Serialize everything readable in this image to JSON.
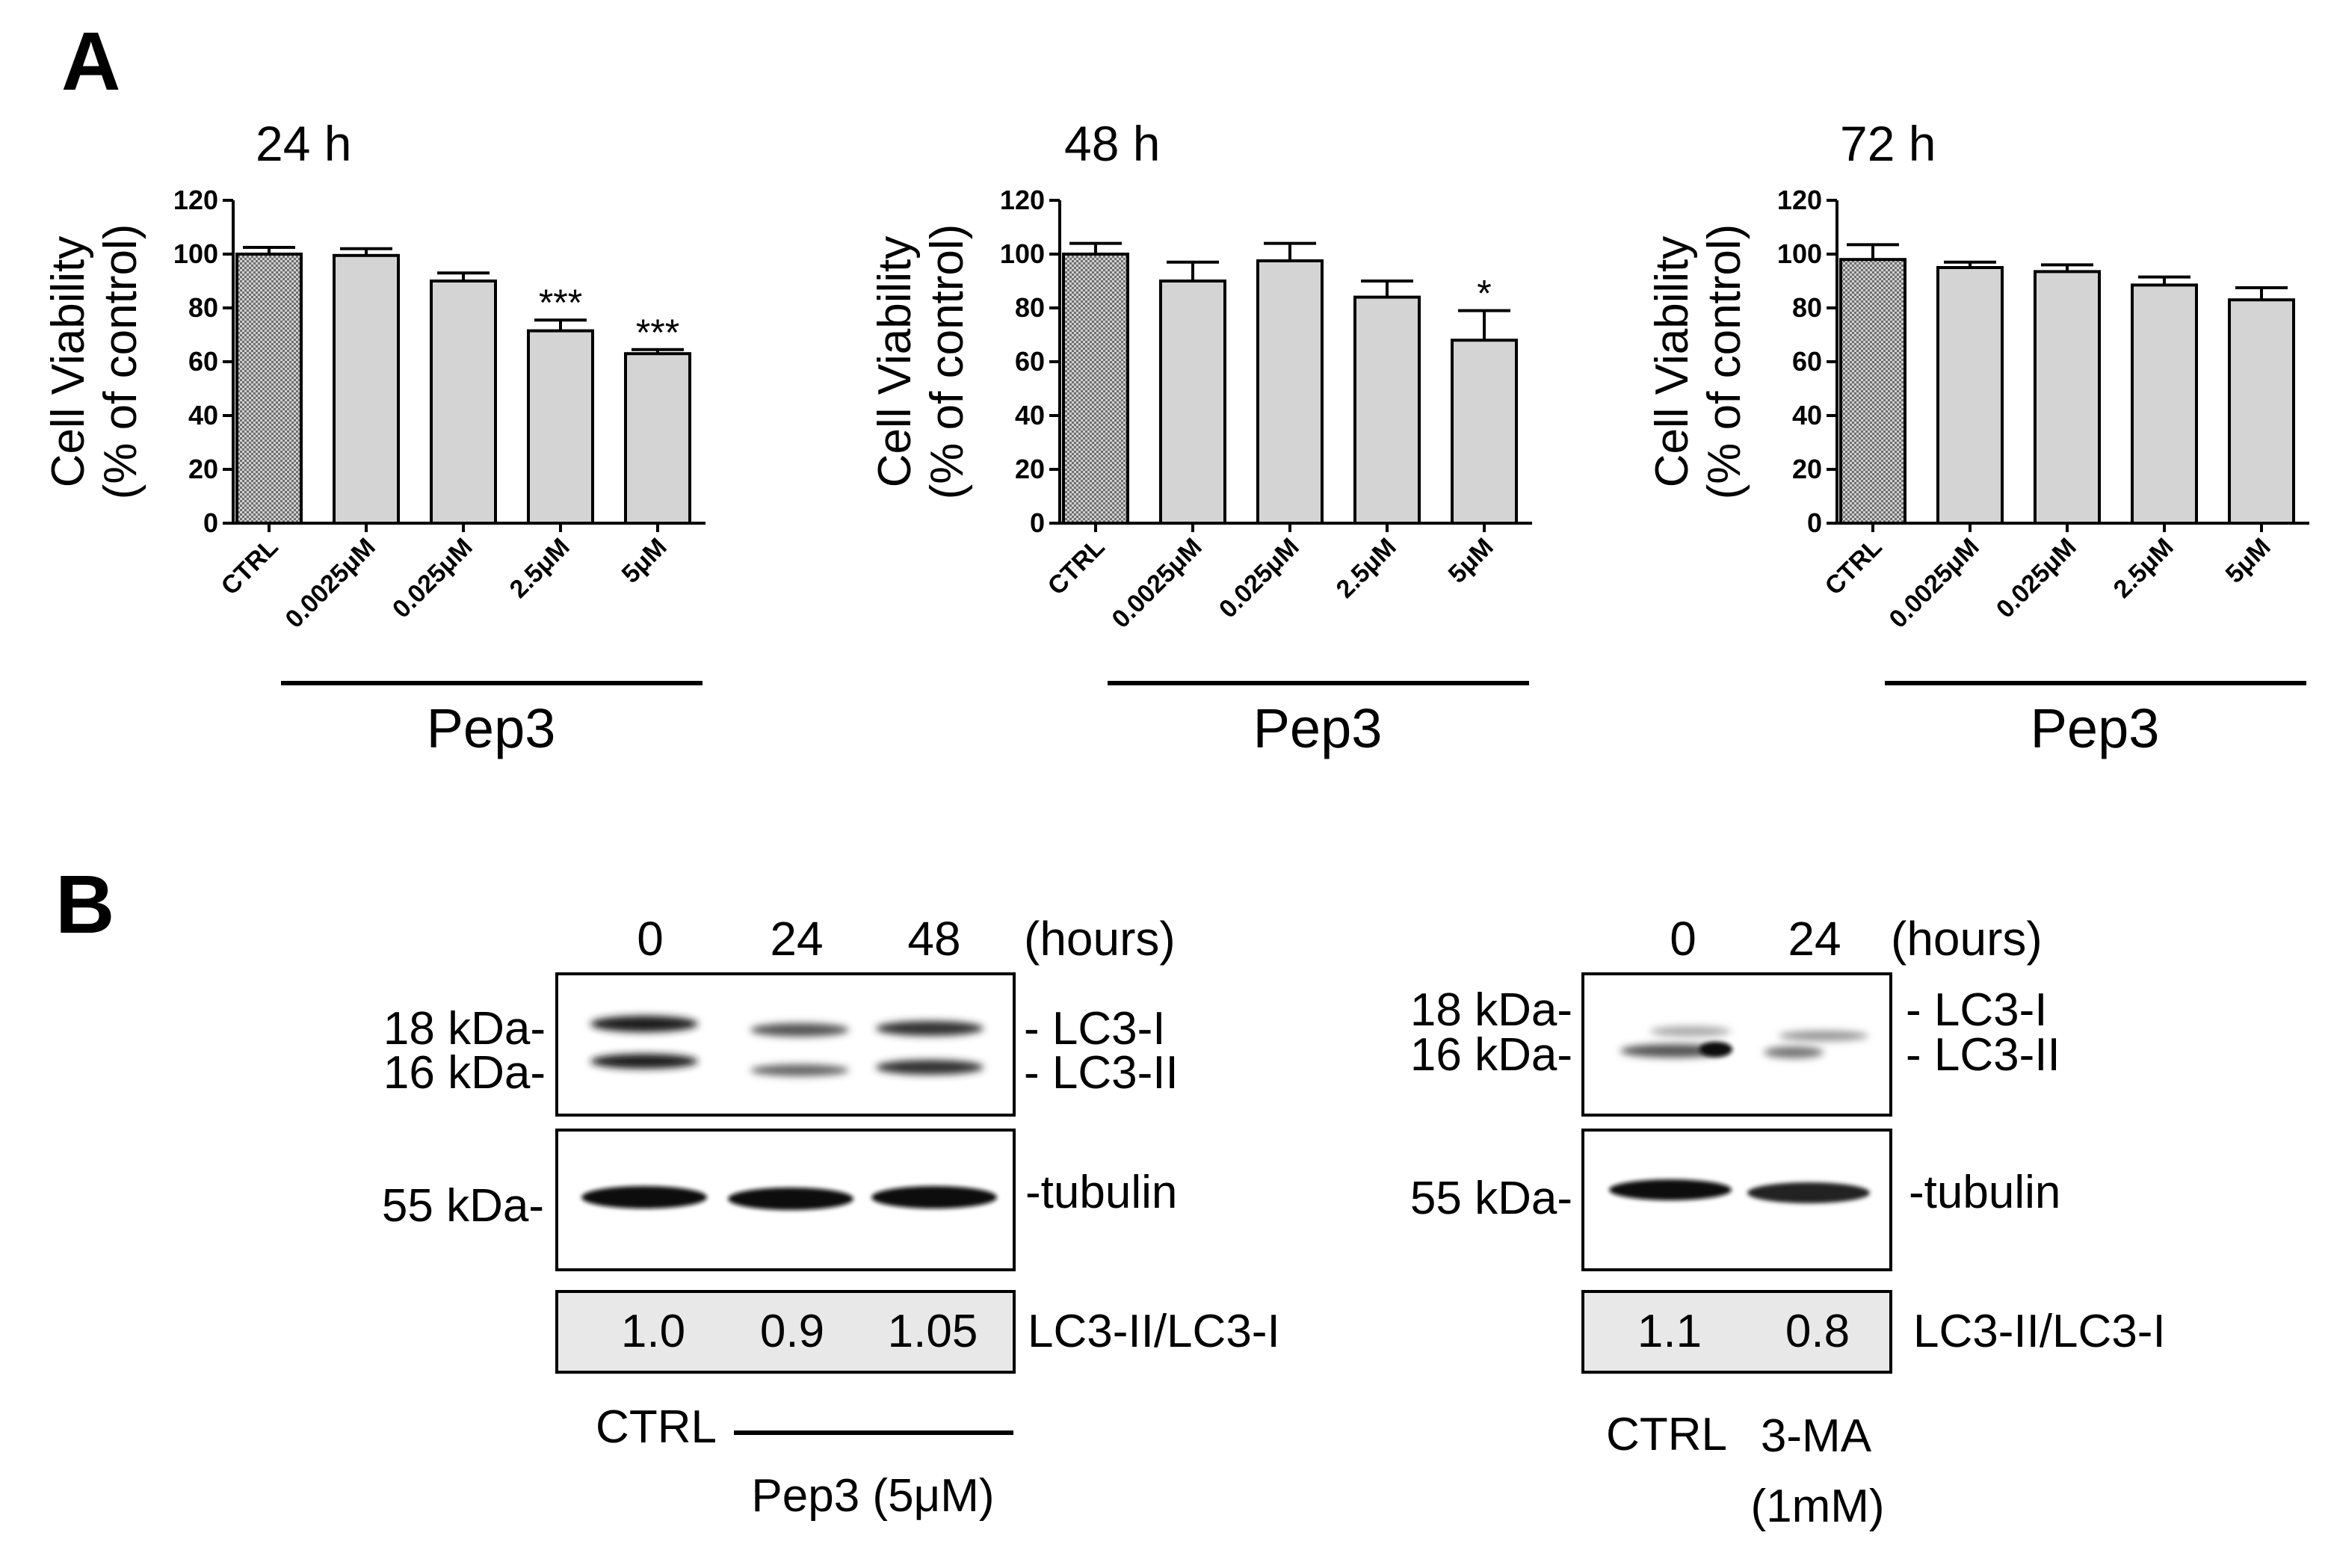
{
  "panel_a": {
    "label": "A",
    "ylabel_line1": "Cell Viability",
    "ylabel_line2": "(% of control)",
    "group_label": "Pep3"
  },
  "panel_b": {
    "label": "B",
    "left_blot": {
      "time_labels": [
        "0",
        "24",
        "48"
      ],
      "time_unit": "(hours)",
      "mw_top": [
        "18 kDa-",
        "16 kDa-"
      ],
      "mw_bottom": "55 kDa-",
      "band_labels": [
        "- LC3-I",
        "- LC3-II"
      ],
      "tubulin_label": "-tubulin",
      "ratio_values": [
        "1.0",
        "0.9",
        "1.05"
      ],
      "ratio_label": "LC3-II/LC3-I",
      "ctrl_label": "CTRL",
      "treatment_label": "Pep3 (5μM)"
    },
    "right_blot": {
      "time_labels": [
        "0",
        "24"
      ],
      "time_unit": "(hours)",
      "mw_top": [
        "18 kDa-",
        "16 kDa-"
      ],
      "mw_bottom": "55 kDa-",
      "band_labels": [
        "- LC3-I",
        "- LC3-II"
      ],
      "tubulin_label": "-tubulin",
      "ratio_values": [
        "1.1",
        "0.8"
      ],
      "ratio_label": "LC3-II/LC3-I",
      "ctrl_label": "CTRL",
      "treatment_label_line1": "3-MA",
      "treatment_label_line2": "(1mM)"
    }
  },
  "colors": {
    "bar_fill": "#d4d4d4",
    "ctrl_fill_pattern": "#777777",
    "ratio_box_fill": "#e8e8e8",
    "blot_band": "#1a1a1a"
  },
  "chart_data": [
    {
      "type": "bar",
      "title": "24 h",
      "categories": [
        "CTRL",
        "0.0025μM",
        "0.025μM",
        "2.5μM",
        "5μM"
      ],
      "values": [
        100,
        99.5,
        90,
        71.5,
        63
      ],
      "errors": [
        2.5,
        2.5,
        3,
        4,
        1.5
      ],
      "significance": [
        "",
        "",
        "",
        "***",
        "***"
      ],
      "ylim": [
        0,
        120
      ],
      "yticks": [
        0,
        20,
        40,
        60,
        80,
        100,
        120
      ]
    },
    {
      "type": "bar",
      "title": "48 h",
      "categories": [
        "CTRL",
        "0.0025μM",
        "0.025μM",
        "2.5μM",
        "5μM"
      ],
      "values": [
        100,
        90,
        97.5,
        84,
        68
      ],
      "errors": [
        4,
        7,
        6.5,
        6,
        11
      ],
      "significance": [
        "",
        "",
        "",
        "",
        "*"
      ],
      "ylim": [
        0,
        120
      ],
      "yticks": [
        0,
        20,
        40,
        60,
        80,
        100,
        120
      ]
    },
    {
      "type": "bar",
      "title": "72 h",
      "categories": [
        "CTRL",
        "0.0025μM",
        "0.025μM",
        "2.5μM",
        "5μM"
      ],
      "values": [
        98,
        95,
        93.5,
        88.5,
        83
      ],
      "errors": [
        5.5,
        2,
        2.5,
        3,
        4.5
      ],
      "significance": [
        "",
        "",
        "",
        "",
        ""
      ],
      "ylim": [
        0,
        120
      ],
      "yticks": [
        0,
        20,
        40,
        60,
        80,
        100,
        120
      ]
    }
  ]
}
